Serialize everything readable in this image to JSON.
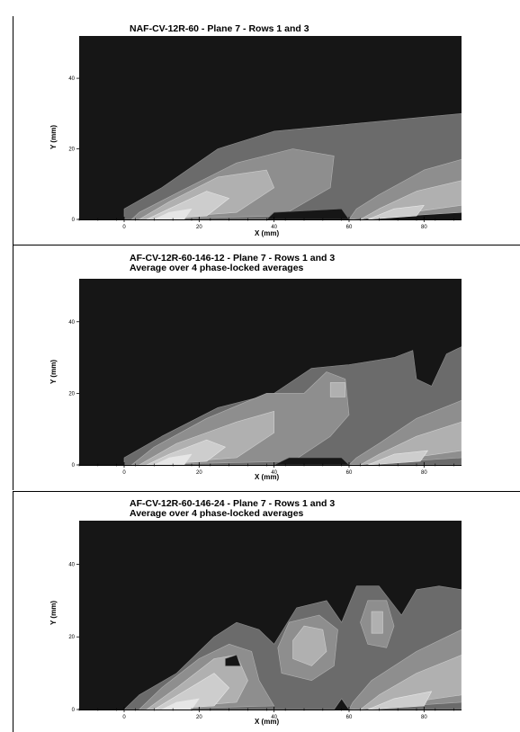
{
  "chart_data": [
    {
      "type": "heatmap",
      "title": "NAF-CV-12R-60  - Plane 7 - Rows 1 and 3",
      "subtitle": "",
      "xlabel": "X (mm)",
      "ylabel": "Y (mm)",
      "xlim": [
        -12,
        90
      ],
      "ylim": [
        0,
        52
      ],
      "xticks": [
        0,
        20,
        40,
        60,
        80
      ],
      "yticks": [
        0,
        20,
        40
      ],
      "grid": false,
      "legend": "none",
      "levels": [
        0,
        1,
        2,
        3,
        4,
        5
      ],
      "colors": [
        "#161616",
        "#6b6b6b",
        "#8e8e8e",
        "#b0b0b0",
        "#cdcdcd",
        "#e6e6e6"
      ],
      "regions": [
        {
          "level": 1,
          "points": [
            [
              0,
              0
            ],
            [
              60,
              0
            ],
            [
              90,
              4
            ],
            [
              90,
              30
            ],
            [
              80,
              29
            ],
            [
              60,
              27
            ],
            [
              40,
              25
            ],
            [
              25,
              20
            ],
            [
              10,
              9
            ],
            [
              0,
              3
            ]
          ]
        },
        {
          "level": 2,
          "points": [
            [
              2,
              0
            ],
            [
              42,
              1
            ],
            [
              55,
              9
            ],
            [
              56,
              18
            ],
            [
              45,
              20
            ],
            [
              30,
              16
            ],
            [
              15,
              8
            ],
            [
              4,
              2
            ]
          ]
        },
        {
          "level": 3,
          "points": [
            [
              4,
              0
            ],
            [
              30,
              2
            ],
            [
              40,
              9
            ],
            [
              38,
              14
            ],
            [
              25,
              12
            ],
            [
              12,
              5
            ]
          ]
        },
        {
          "level": 4,
          "points": [
            [
              6,
              0
            ],
            [
              22,
              1
            ],
            [
              28,
              6
            ],
            [
              22,
              8
            ],
            [
              12,
              3
            ]
          ]
        },
        {
          "level": 5,
          "points": [
            [
              8,
              0
            ],
            [
              16,
              0
            ],
            [
              18,
              3
            ],
            [
              12,
              2
            ]
          ]
        },
        {
          "level": 0,
          "points": [
            [
              38,
              0
            ],
            [
              60,
              0
            ],
            [
              58,
              3
            ],
            [
              40,
              2
            ]
          ]
        },
        {
          "level": 2,
          "points": [
            [
              60,
              0
            ],
            [
              90,
              2
            ],
            [
              90,
              17
            ],
            [
              80,
              14
            ],
            [
              68,
              7
            ],
            [
              62,
              3
            ]
          ]
        },
        {
          "level": 3,
          "points": [
            [
              63,
              0
            ],
            [
              90,
              4
            ],
            [
              90,
              11
            ],
            [
              78,
              8
            ],
            [
              68,
              3
            ]
          ]
        },
        {
          "level": 4,
          "points": [
            [
              65,
              0
            ],
            [
              78,
              1
            ],
            [
              80,
              4
            ],
            [
              72,
              3
            ]
          ]
        }
      ]
    },
    {
      "type": "heatmap",
      "title": "AF-CV-12R-60-146-12  - Plane 7 - Rows 1 and 3",
      "subtitle": "Average over 4 phase-locked averages",
      "xlabel": "X (mm)",
      "ylabel": "Y (mm)",
      "xlim": [
        -12,
        90
      ],
      "ylim": [
        0,
        52
      ],
      "xticks": [
        0,
        20,
        40,
        60,
        80
      ],
      "yticks": [
        0,
        20,
        40
      ],
      "grid": false,
      "legend": "none",
      "levels": [
        0,
        1,
        2,
        3,
        4,
        5
      ],
      "colors": [
        "#161616",
        "#6b6b6b",
        "#8e8e8e",
        "#b0b0b0",
        "#cdcdcd",
        "#e6e6e6"
      ],
      "regions": [
        {
          "level": 1,
          "points": [
            [
              0,
              0
            ],
            [
              90,
              0
            ],
            [
              90,
              33
            ],
            [
              86,
              31
            ],
            [
              82,
              22
            ],
            [
              78,
              24
            ],
            [
              77,
              32
            ],
            [
              72,
              30
            ],
            [
              60,
              28
            ],
            [
              50,
              27
            ],
            [
              40,
              20
            ],
            [
              25,
              16
            ],
            [
              10,
              8
            ],
            [
              0,
              2
            ]
          ]
        },
        {
          "level": 2,
          "points": [
            [
              2,
              0
            ],
            [
              45,
              1
            ],
            [
              55,
              8
            ],
            [
              60,
              14
            ],
            [
              59,
              24
            ],
            [
              54,
              26
            ],
            [
              48,
              20
            ],
            [
              38,
              20
            ],
            [
              22,
              13
            ],
            [
              8,
              5
            ]
          ]
        },
        {
          "level": 3,
          "points": [
            [
              4,
              0
            ],
            [
              30,
              2
            ],
            [
              40,
              9
            ],
            [
              40,
              15
            ],
            [
              30,
              12
            ],
            [
              14,
              6
            ]
          ]
        },
        {
          "level": 3,
          "points": [
            [
              55,
              19
            ],
            [
              59,
              19
            ],
            [
              59,
              23
            ],
            [
              55,
              23
            ]
          ]
        },
        {
          "level": 4,
          "points": [
            [
              6,
              0
            ],
            [
              22,
              1
            ],
            [
              27,
              5
            ],
            [
              22,
              7
            ],
            [
              12,
              3
            ]
          ]
        },
        {
          "level": 5,
          "points": [
            [
              8,
              0
            ],
            [
              16,
              0
            ],
            [
              18,
              3
            ],
            [
              12,
              2
            ]
          ]
        },
        {
          "level": 0,
          "points": [
            [
              40,
              0
            ],
            [
              60,
              0
            ],
            [
              58,
              2
            ],
            [
              44,
              2
            ]
          ]
        },
        {
          "level": 2,
          "points": [
            [
              60,
              0
            ],
            [
              90,
              2
            ],
            [
              90,
              18
            ],
            [
              78,
              13
            ],
            [
              68,
              6
            ],
            [
              62,
              2
            ]
          ]
        },
        {
          "level": 3,
          "points": [
            [
              63,
              0
            ],
            [
              90,
              4
            ],
            [
              90,
              12
            ],
            [
              78,
              8
            ],
            [
              68,
              3
            ]
          ]
        },
        {
          "level": 4,
          "points": [
            [
              65,
              0
            ],
            [
              79,
              1
            ],
            [
              81,
              4
            ],
            [
              72,
              3
            ]
          ]
        }
      ]
    },
    {
      "type": "heatmap",
      "title": "AF-CV-12R-60-146-24  - Plane 7 - Rows 1 and 3",
      "subtitle": "Average over 4 phase-locked averages",
      "xlabel": "X (mm)",
      "ylabel": "Y (mm)",
      "xlim": [
        -12,
        90
      ],
      "ylim": [
        0,
        52
      ],
      "xticks": [
        0,
        20,
        40,
        60,
        80
      ],
      "yticks": [
        0,
        20,
        40
      ],
      "grid": false,
      "legend": "none",
      "levels": [
        0,
        1,
        2,
        3,
        4,
        5
      ],
      "colors": [
        "#161616",
        "#6b6b6b",
        "#8e8e8e",
        "#b0b0b0",
        "#cdcdcd",
        "#e6e6e6"
      ],
      "regions": [
        {
          "level": 1,
          "points": [
            [
              0,
              0
            ],
            [
              56,
              0
            ],
            [
              58,
              3
            ],
            [
              60,
              0
            ],
            [
              90,
              0
            ],
            [
              90,
              33
            ],
            [
              84,
              34
            ],
            [
              78,
              33
            ],
            [
              74,
              26
            ],
            [
              68,
              34
            ],
            [
              62,
              34
            ],
            [
              58,
              24
            ],
            [
              54,
              30
            ],
            [
              46,
              28
            ],
            [
              40,
              18
            ],
            [
              36,
              22
            ],
            [
              30,
              24
            ],
            [
              24,
              20
            ],
            [
              14,
              10
            ],
            [
              4,
              4
            ]
          ]
        },
        {
          "level": 2,
          "points": [
            [
              4,
              0
            ],
            [
              40,
              1
            ],
            [
              36,
              8
            ],
            [
              34,
              16
            ],
            [
              28,
              18
            ],
            [
              20,
              14
            ],
            [
              10,
              6
            ]
          ]
        },
        {
          "level": 2,
          "points": [
            [
              42,
              10
            ],
            [
              50,
              8
            ],
            [
              56,
              12
            ],
            [
              57,
              22
            ],
            [
              52,
              26
            ],
            [
              44,
              24
            ],
            [
              41,
              17
            ]
          ]
        },
        {
          "level": 2,
          "points": [
            [
              65,
              18
            ],
            [
              70,
              17
            ],
            [
              72,
              23
            ],
            [
              70,
              30
            ],
            [
              65,
              30
            ],
            [
              63,
              24
            ]
          ]
        },
        {
          "level": 3,
          "points": [
            [
              6,
              0
            ],
            [
              30,
              2
            ],
            [
              33,
              8
            ],
            [
              30,
              15
            ],
            [
              24,
              14
            ],
            [
              14,
              6
            ]
          ]
        },
        {
          "level": 3,
          "points": [
            [
              45,
              14
            ],
            [
              50,
              12
            ],
            [
              54,
              16
            ],
            [
              53,
              22
            ],
            [
              48,
              23
            ],
            [
              45,
              19
            ]
          ]
        },
        {
          "level": 3,
          "points": [
            [
              66,
              21
            ],
            [
              69,
              21
            ],
            [
              69,
              27
            ],
            [
              66,
              27
            ]
          ]
        },
        {
          "level": 4,
          "points": [
            [
              8,
              0
            ],
            [
              24,
              1
            ],
            [
              28,
              6
            ],
            [
              24,
              10
            ],
            [
              16,
              5
            ]
          ]
        },
        {
          "level": 5,
          "points": [
            [
              10,
              0
            ],
            [
              18,
              0
            ],
            [
              20,
              3
            ],
            [
              14,
              2
            ]
          ]
        },
        {
          "level": 0,
          "points": [
            [
              27,
              12
            ],
            [
              31,
              12
            ],
            [
              30,
              15
            ],
            [
              27,
              14
            ]
          ]
        },
        {
          "level": 2,
          "points": [
            [
              60,
              0
            ],
            [
              90,
              2
            ],
            [
              90,
              22
            ],
            [
              78,
              16
            ],
            [
              66,
              8
            ],
            [
              61,
              2
            ]
          ]
        },
        {
          "level": 3,
          "points": [
            [
              63,
              0
            ],
            [
              90,
              4
            ],
            [
              90,
              15
            ],
            [
              78,
              10
            ],
            [
              68,
              4
            ]
          ]
        },
        {
          "level": 4,
          "points": [
            [
              65,
              0
            ],
            [
              80,
              1
            ],
            [
              82,
              5
            ],
            [
              72,
              3
            ]
          ]
        }
      ]
    }
  ]
}
